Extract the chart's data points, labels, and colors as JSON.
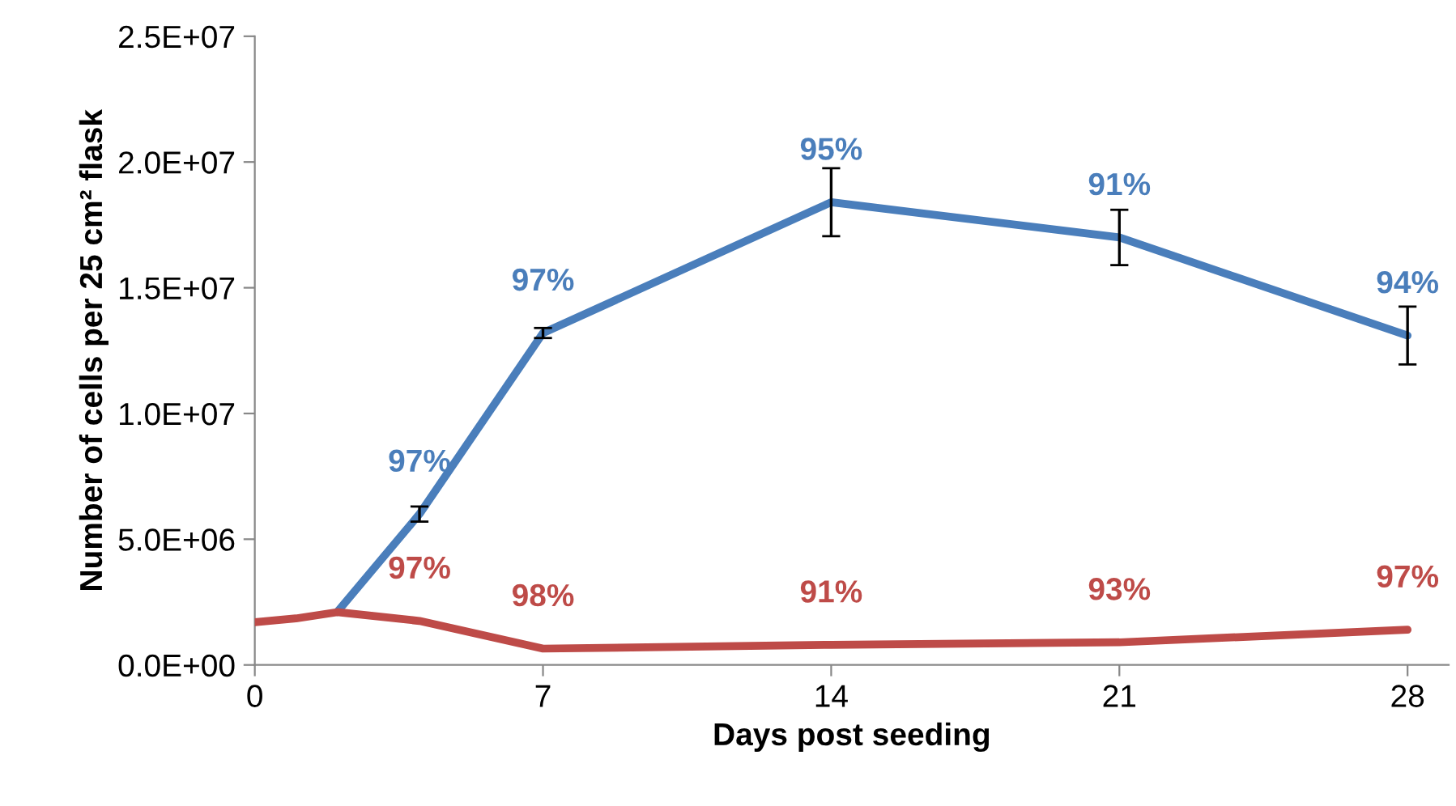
{
  "chart_data": {
    "type": "line",
    "xlabel": "Days post seeding",
    "ylabel": "Number of cells per 25 cm² flask",
    "xlim": [
      0,
      29
    ],
    "xticks": [
      0,
      7,
      14,
      21,
      28
    ],
    "ylim": [
      0,
      25000000
    ],
    "yticks": [
      {
        "value": 0,
        "label": "0.0E+00"
      },
      {
        "value": 5000000,
        "label": "5.0E+06"
      },
      {
        "value": 10000000,
        "label": "1.0E+07"
      },
      {
        "value": 15000000,
        "label": "1.5E+07"
      },
      {
        "value": 20000000,
        "label": "2.0E+07"
      },
      {
        "value": 25000000,
        "label": "2.5E+07"
      }
    ],
    "grid": false,
    "legend": false,
    "marker": "none",
    "line_style": "solid",
    "series": [
      {
        "color": "#4a7ebb",
        "x": [
          2,
          4,
          7,
          14,
          21,
          28
        ],
        "values": [
          2100000,
          6000000,
          13200000,
          18400000,
          17000000,
          13100000
        ],
        "errors": [
          null,
          300000,
          200000,
          1350000,
          1100000,
          1150000
        ]
      },
      {
        "color": "#be4b48",
        "x": [
          0,
          1,
          2,
          4,
          7,
          14,
          21,
          28
        ],
        "values": [
          1700000,
          1850000,
          2100000,
          1750000,
          650000,
          800000,
          900000,
          1400000
        ]
      }
    ],
    "annotations": [
      {
        "text": "97%",
        "x": 4,
        "y": 6000000
      },
      {
        "text": "97%",
        "x": 7,
        "y": 13200000
      },
      {
        "text": "95%",
        "x": 14,
        "y": 18400000
      },
      {
        "text": "91%",
        "x": 21,
        "y": 17000000
      },
      {
        "text": "94%",
        "x": 28,
        "y": 13100000
      },
      {
        "text": "97%",
        "x": 4,
        "y": 1750000
      },
      {
        "text": "98%",
        "x": 7,
        "y": 650000
      },
      {
        "text": "91%",
        "x": 14,
        "y": 800000
      },
      {
        "text": "93%",
        "x": 21,
        "y": 900000
      },
      {
        "text": "97%",
        "x": 28,
        "y": 1400000
      }
    ]
  }
}
